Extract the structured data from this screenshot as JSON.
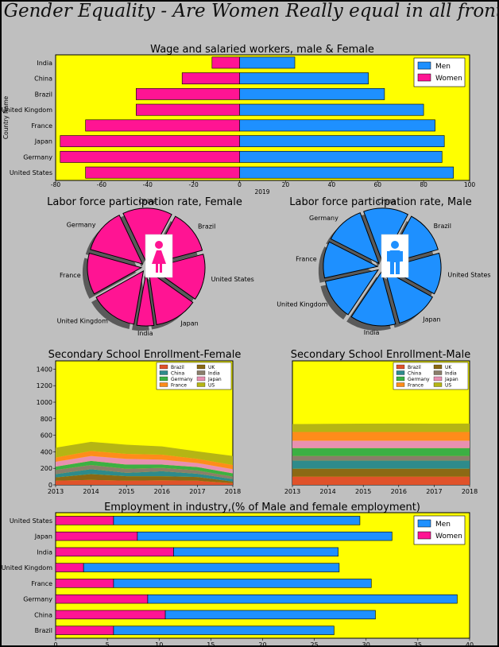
{
  "title": "Gender Equality - Are Women Really equal in all fronts?",
  "colors": {
    "page_bg": "#bfbfbf",
    "plot_bg": "#ffff00",
    "men": "#1e90ff",
    "women": "#ff1493"
  },
  "chart_data": [
    {
      "type": "bar",
      "orientation": "horizontal",
      "title": "Wage and salaried workers, male & Female",
      "xlabel": "2019",
      "ylabel": "Country Name",
      "categories": [
        "United States",
        "Germany",
        "Japan",
        "France",
        "United Kingdom",
        "Brazil",
        "China",
        "India"
      ],
      "series": [
        {
          "name": "Men",
          "color": "#1e90ff",
          "values": [
            93,
            88,
            89,
            85,
            80,
            63,
            56,
            24
          ]
        },
        {
          "name": "Women",
          "color": "#ff1493",
          "values": [
            -67,
            -78,
            -78,
            -67,
            -45,
            -45,
            -25,
            -12
          ]
        }
      ],
      "xlim": [
        -80,
        100
      ],
      "xticks": [
        -80,
        -60,
        -40,
        -20,
        0,
        20,
        40,
        60,
        80,
        100
      ],
      "legend": "top-right"
    },
    {
      "type": "pie",
      "title": "Labor force participation rate, Female",
      "color": "#ff1493",
      "slices": [
        {
          "label": "Brazil",
          "value": 54
        },
        {
          "label": "United States",
          "value": 57
        },
        {
          "label": "Japan",
          "value": 53
        },
        {
          "label": "India",
          "value": 21
        },
        {
          "label": "United Kingdom",
          "value": 58
        },
        {
          "label": "France",
          "value": 51
        },
        {
          "label": "Germany",
          "value": 56
        },
        {
          "label": "China",
          "value": 61
        }
      ],
      "exploded": true,
      "shadow": true,
      "center_icon": "female-person-icon"
    },
    {
      "type": "pie",
      "title": "Labor force participation rate, Male",
      "color": "#1e90ff",
      "slices": [
        {
          "label": "Brazil",
          "value": 72
        },
        {
          "label": "United States",
          "value": 69
        },
        {
          "label": "Japan",
          "value": 71
        },
        {
          "label": "India",
          "value": 76
        },
        {
          "label": "United Kingdom",
          "value": 68
        },
        {
          "label": "France",
          "value": 61
        },
        {
          "label": "Germany",
          "value": 66
        },
        {
          "label": "China",
          "value": 75
        }
      ],
      "exploded": true,
      "shadow": true,
      "center_icon": "male-person-icon"
    },
    {
      "type": "area",
      "stacked": true,
      "title": "Secondary School Enrollment-Female",
      "x": [
        2013,
        2014,
        2015,
        2016,
        2017,
        2018
      ],
      "ylim": [
        0,
        1500
      ],
      "yticks": [
        0,
        200,
        400,
        600,
        800,
        1000,
        1200,
        1400
      ],
      "legend": "top-right",
      "series": [
        {
          "name": "Brazil",
          "color": "#e0522a",
          "values": [
            50,
            60,
            50,
            55,
            50,
            20
          ]
        },
        {
          "name": "UK",
          "color": "#8b6914",
          "values": [
            40,
            70,
            55,
            50,
            45,
            20
          ]
        },
        {
          "name": "China",
          "color": "#2e8b8b",
          "values": [
            40,
            60,
            40,
            60,
            40,
            30
          ]
        },
        {
          "name": "India",
          "color": "#8a7e6a",
          "values": [
            50,
            50,
            50,
            40,
            40,
            30
          ]
        },
        {
          "name": "Germany",
          "color": "#3cb043",
          "values": [
            40,
            50,
            50,
            40,
            40,
            40
          ]
        },
        {
          "name": "Japan",
          "color": "#e890b0",
          "values": [
            60,
            60,
            70,
            60,
            50,
            50
          ]
        },
        {
          "name": "France",
          "color": "#ff8c1a",
          "values": [
            50,
            60,
            60,
            60,
            50,
            50
          ]
        },
        {
          "name": "US",
          "color": "#b5b514",
          "values": [
            120,
            110,
            110,
            100,
            90,
            110
          ]
        }
      ]
    },
    {
      "type": "area",
      "stacked": true,
      "title": "Secondary School Enrollment-Male",
      "x": [
        2013,
        2014,
        2015,
        2016,
        2017,
        2018
      ],
      "ylim": [
        0,
        1500
      ],
      "legend": "top-right",
      "series": [
        {
          "name": "Brazil",
          "color": "#e0522a",
          "values": [
            100,
            100,
            100,
            100,
            100,
            100
          ]
        },
        {
          "name": "UK",
          "color": "#8b6914",
          "values": [
            95,
            95,
            95,
            95,
            95,
            95
          ]
        },
        {
          "name": "China",
          "color": "#2e8b8b",
          "values": [
            100,
            100,
            100,
            100,
            100,
            100
          ]
        },
        {
          "name": "India",
          "color": "#8a7e6a",
          "values": [
            55,
            55,
            55,
            55,
            55,
            55
          ]
        },
        {
          "name": "Germany",
          "color": "#3cb043",
          "values": [
            95,
            95,
            95,
            95,
            95,
            95
          ]
        },
        {
          "name": "Japan",
          "color": "#e890b0",
          "values": [
            90,
            90,
            90,
            90,
            90,
            90
          ]
        },
        {
          "name": "France",
          "color": "#ff8c1a",
          "values": [
            105,
            105,
            105,
            105,
            105,
            105
          ]
        },
        {
          "name": "US",
          "color": "#b5b514",
          "values": [
            95,
            98,
            100,
            102,
            100,
            102
          ]
        }
      ]
    },
    {
      "type": "bar",
      "orientation": "horizontal",
      "stacked": true,
      "title": "Employment in industry,(% of Male and female employment)",
      "categories": [
        "Brazil",
        "China",
        "Germany",
        "France",
        "United Kingdom",
        "India",
        "Japan",
        "United States"
      ],
      "series": [
        {
          "name": "Women",
          "color": "#ff1493",
          "values": [
            5.6,
            10.6,
            8.9,
            5.6,
            2.7,
            11.4,
            7.9,
            5.6
          ]
        },
        {
          "name": "Men",
          "color": "#1e90ff",
          "values": [
            21.3,
            20.3,
            29.9,
            24.9,
            24.7,
            15.9,
            24.6,
            23.8
          ]
        }
      ],
      "xlim": [
        0,
        40
      ],
      "xticks": [
        0,
        5,
        10,
        15,
        20,
        25,
        30,
        35,
        40
      ],
      "legend": "top-right"
    }
  ]
}
